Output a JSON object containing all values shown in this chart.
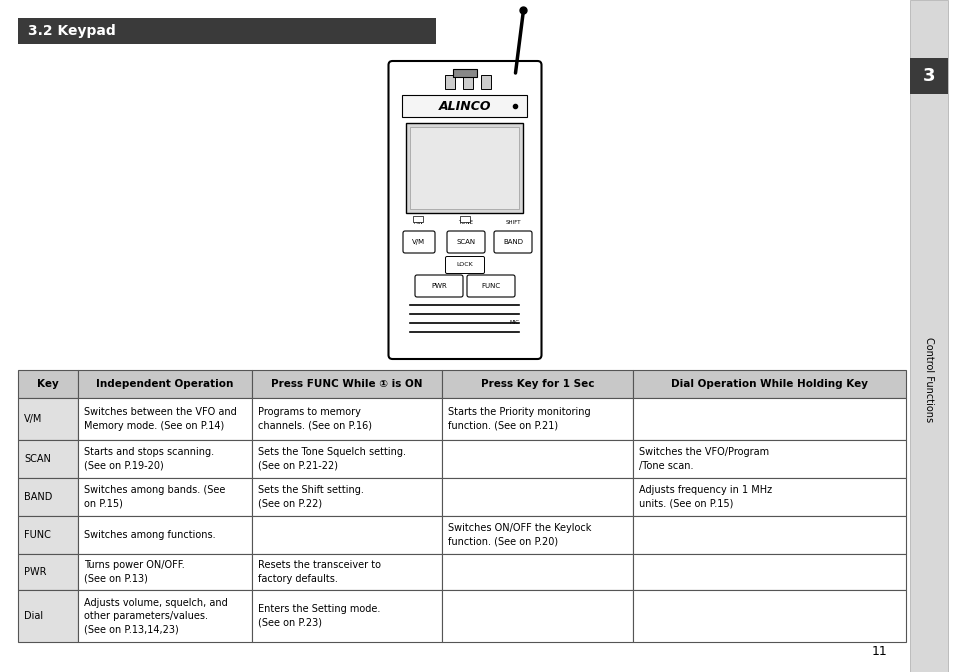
{
  "title": "3.2 Keypad",
  "title_bg": "#3a3a3a",
  "title_color": "#ffffff",
  "title_fontsize": 10,
  "page_number": "11",
  "sidebar_text": "Control Functions",
  "sidebar_number": "3",
  "table_header": [
    "Key",
    "Independent Operation",
    "Press FUNC While ① is ON",
    "Press Key for 1 Sec",
    "Dial Operation While Holding Key"
  ],
  "table_rows": [
    [
      "V/M",
      "Switches between the VFO and\nMemory mode. (See on P.14)",
      "Programs to memory\nchannels. (See on P.16)",
      "Starts the Priority monitoring\nfunction. (See on P.21)",
      ""
    ],
    [
      "SCAN",
      "Starts and stops scanning.\n(See on P.19-20)",
      "Sets the Tone Squelch setting.\n(See on P.21-22)",
      "",
      "Switches the VFO/Program\n/Tone scan."
    ],
    [
      "BAND",
      "Switches among bands. (See\non P.15)",
      "Sets the Shift setting.\n(See on P.22)",
      "",
      "Adjusts frequency in 1 MHz\nunits. (See on P.15)"
    ],
    [
      "FUNC",
      "Switches among functions.",
      "",
      "Switches ON/OFF the Keylock\nfunction. (See on P.20)",
      ""
    ],
    [
      "PWR",
      "Turns power ON/OFF.\n(See on P.13)",
      "Resets the transceiver to\nfactory defaults.",
      "",
      ""
    ],
    [
      "Dial",
      "Adjusts volume, squelch, and\nother parameters/values.\n(See on P.13,14,23)",
      "Enters the Setting mode.\n(See on P.23)",
      "",
      ""
    ]
  ],
  "header_bg": "#c8c8c8",
  "header_fontsize": 7.5,
  "cell_fontsize": 7,
  "key_col_bg": "#e0e0e0",
  "body_bg": "#ffffff",
  "border_color": "#555555",
  "fig_bg": "#ffffff",
  "sidebar_bg": "#d8d8d8",
  "sidebar_border": "#aaaaaa"
}
